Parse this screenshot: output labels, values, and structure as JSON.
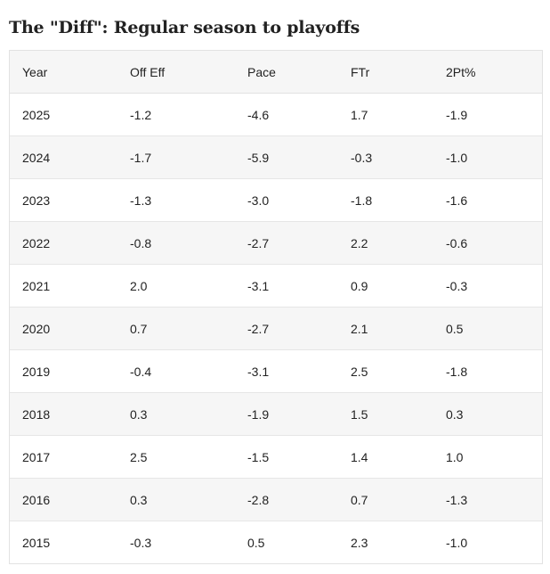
{
  "title": "The \"Diff\": Regular season to playoffs",
  "table": {
    "columns": [
      "Year",
      "Off Eff",
      "Pace",
      "FTr",
      "2Pt%"
    ],
    "rows": [
      [
        "2025",
        "-1.2",
        "-4.6",
        "1.7",
        "-1.9"
      ],
      [
        "2024",
        "-1.7",
        "-5.9",
        "-0.3",
        "-1.0"
      ],
      [
        "2023",
        "-1.3",
        "-3.0",
        "-1.8",
        "-1.6"
      ],
      [
        "2022",
        "-0.8",
        "-2.7",
        "2.2",
        "-0.6"
      ],
      [
        "2021",
        "2.0",
        "-3.1",
        "0.9",
        "-0.3"
      ],
      [
        "2020",
        "0.7",
        "-2.7",
        "2.1",
        "0.5"
      ],
      [
        "2019",
        "-0.4",
        "-3.1",
        "2.5",
        "-1.8"
      ],
      [
        "2018",
        "0.3",
        "-1.9",
        "1.5",
        "0.3"
      ],
      [
        "2017",
        "2.5",
        "-1.5",
        "1.4",
        "1.0"
      ],
      [
        "2016",
        "0.3",
        "-2.8",
        "0.7",
        "-1.3"
      ],
      [
        "2015",
        "-0.3",
        "0.5",
        "2.3",
        "-1.0"
      ]
    ]
  }
}
